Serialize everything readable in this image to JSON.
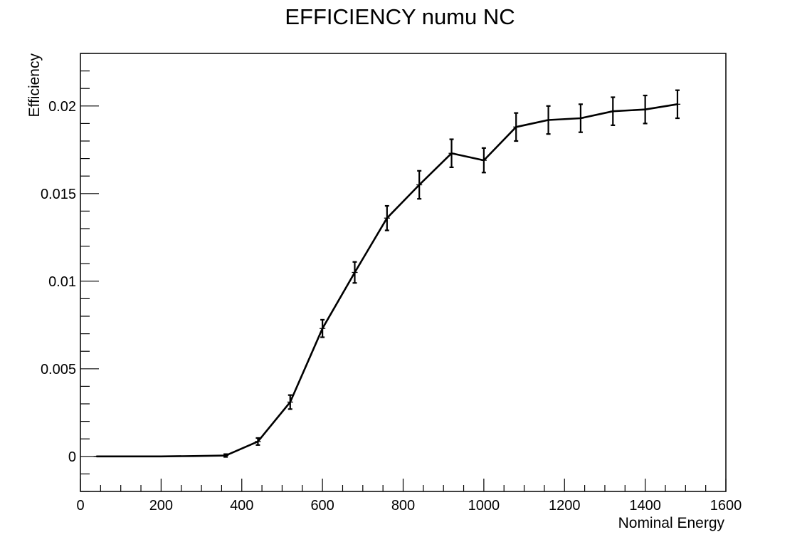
{
  "chart_data": {
    "type": "line",
    "title": "EFFICIENCY numu NC",
    "xlabel": "Nominal Energy",
    "ylabel": "Efficiency",
    "xlim": [
      0,
      1600
    ],
    "ylim": [
      -0.002,
      0.023
    ],
    "x_ticks": [
      "0",
      "200",
      "400",
      "600",
      "800",
      "1000",
      "1200",
      "1400",
      "1600"
    ],
    "y_ticks": [
      "0",
      "0.005",
      "0.01",
      "0.015",
      "0.02"
    ],
    "grid": false,
    "series": [
      {
        "x": [
          40,
          120,
          200,
          280,
          360,
          440,
          520,
          600,
          680,
          760,
          840,
          920,
          1000,
          1080,
          1160,
          1240,
          1320,
          1400,
          1480
        ],
        "y": [
          0.0,
          0.0,
          0.0,
          2e-05,
          5e-05,
          0.00085,
          0.0031,
          0.0073,
          0.0105,
          0.0136,
          0.0155,
          0.0173,
          0.0169,
          0.0188,
          0.0192,
          0.0193,
          0.0197,
          0.0198,
          0.0201
        ],
        "y_err": [
          2e-05,
          2e-05,
          2e-05,
          3e-05,
          8e-05,
          0.0002,
          0.0004,
          0.0005,
          0.0006,
          0.0007,
          0.0008,
          0.0008,
          0.0007,
          0.0008,
          0.0008,
          0.0008,
          0.0008,
          0.0008,
          0.0008
        ],
        "x_err": 40
      }
    ]
  }
}
